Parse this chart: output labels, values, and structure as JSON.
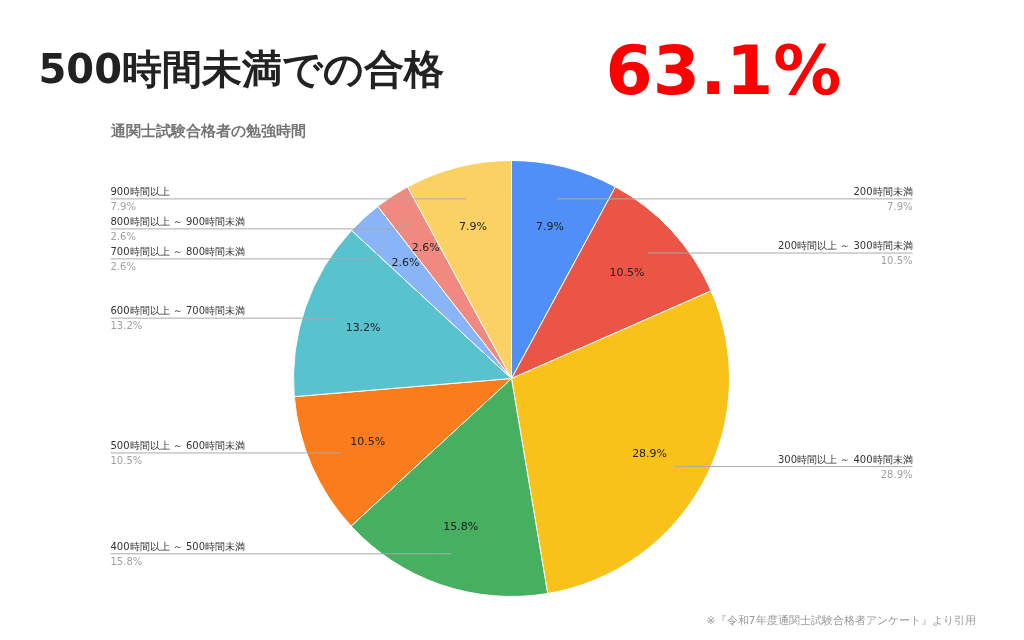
{
  "chart_data": {
    "type": "pie",
    "title": "500時間未満での合格",
    "subtitle": "通関士試験合格者の勉強時間",
    "annotations": [
      "63.1%",
      "※『令和7年度通関士試験合格者アンケート』より引用"
    ],
    "categories": [
      "200時間未満",
      "200時間以上 ～ 300時間未満",
      "300時間以上 ～ 400時間未満",
      "400時間以上 ～ 500時間未満",
      "500時間以上 ～ 600時間未満",
      "600時間以上 ～ 700時間未満",
      "700時間以上 ～ 800時間未満",
      "800時間以上 ～ 900時間未満",
      "900時間以上"
    ],
    "values": [
      7.9,
      10.5,
      28.9,
      15.8,
      10.5,
      13.2,
      2.6,
      2.6,
      7.9
    ],
    "value_labels": [
      "7.9%",
      "10.5%",
      "28.9%",
      "15.8%",
      "10.5%",
      "13.2%",
      "2.6%",
      "2.6%",
      "7.9%"
    ],
    "colors": [
      "#4f8ff7",
      "#ea5545",
      "#f8c21b",
      "#46af60",
      "#fb7c1c",
      "#58c3cf",
      "#8ab4f8",
      "#f08a80",
      "#fcd163"
    ],
    "data_labels": true
  }
}
